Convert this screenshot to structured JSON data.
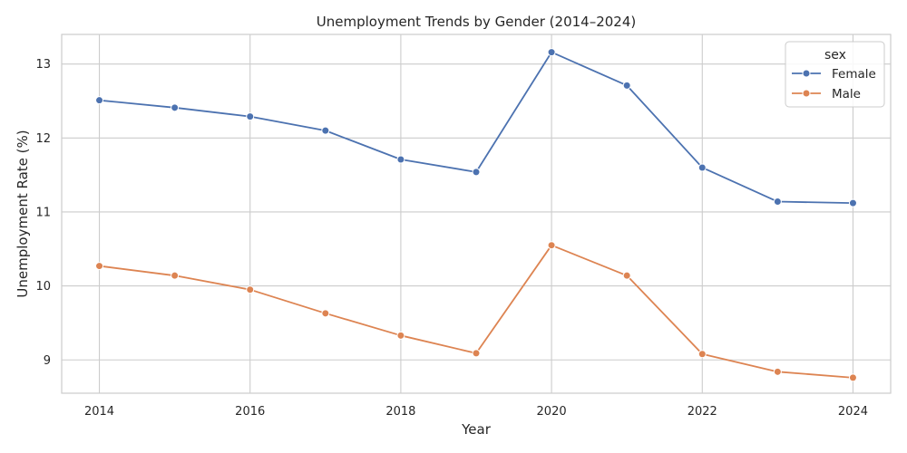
{
  "chart_data": {
    "type": "line",
    "title": "Unemployment Trends by Gender (2014–2024)",
    "xlabel": "Year",
    "ylabel": "Unemployment Rate (%)",
    "x": [
      2014,
      2015,
      2016,
      2017,
      2018,
      2019,
      2020,
      2021,
      2022,
      2023,
      2024
    ],
    "xlim": [
      2013.5,
      2024.5
    ],
    "ylim": [
      8.55,
      13.4
    ],
    "x_ticks": [
      "2014",
      "2016",
      "2018",
      "2020",
      "2022",
      "2024"
    ],
    "y_ticks": [
      "9",
      "10",
      "11",
      "12",
      "13"
    ],
    "grid": true,
    "legend": {
      "title": "sex",
      "placement": "top-right"
    },
    "series": [
      {
        "name": "Female",
        "color": "#4c72b0",
        "values": [
          12.51,
          12.41,
          12.29,
          12.1,
          11.71,
          11.54,
          13.16,
          12.71,
          11.6,
          11.14,
          11.12
        ]
      },
      {
        "name": "Male",
        "color": "#dd8452",
        "values": [
          10.27,
          10.14,
          9.95,
          9.63,
          9.33,
          9.09,
          10.55,
          10.14,
          9.08,
          8.84,
          8.76
        ]
      }
    ]
  }
}
